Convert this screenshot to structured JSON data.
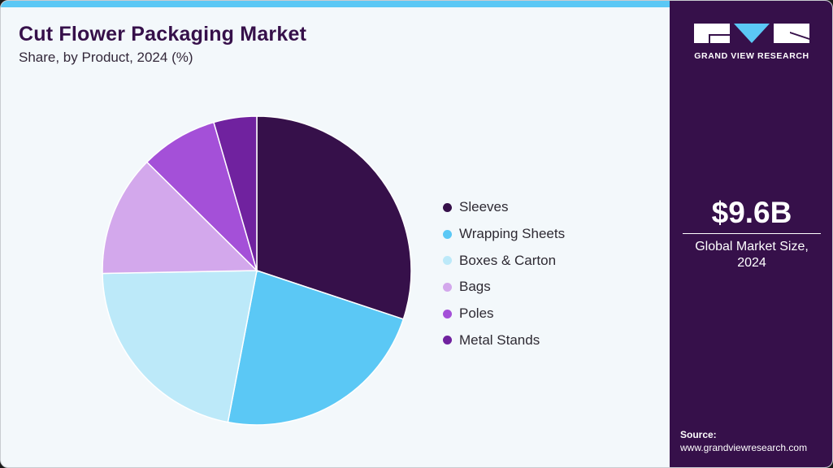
{
  "header": {
    "title": "Cut Flower Packaging Market",
    "subtitle": "Share, by Product, 2024 (%)"
  },
  "brand": {
    "name": "GRAND VIEW RESEARCH",
    "accent": "#5bc8f5",
    "panel_color": "#36104a"
  },
  "summary": {
    "value": "$9.6B",
    "label_line1": "Global Market Size,",
    "label_line2": "2024"
  },
  "source": {
    "label": "Source:",
    "url": "www.grandviewresearch.com"
  },
  "legend": [
    {
      "label": "Sleeves",
      "color": "#36104a"
    },
    {
      "label": "Wrapping Sheets",
      "color": "#5bc8f5"
    },
    {
      "label": "Boxes & Carton",
      "color": "#bce9f9"
    },
    {
      "label": "Bags",
      "color": "#d3a8ec"
    },
    {
      "label": "Poles",
      "color": "#a450d8"
    },
    {
      "label": "Metal Stands",
      "color": "#70229f"
    }
  ],
  "chart_data": {
    "type": "pie",
    "title": "Cut Flower Packaging Market",
    "subtitle": "Share, by Product, 2024 (%)",
    "categories": [
      "Sleeves",
      "Wrapping Sheets",
      "Boxes & Carton",
      "Bags",
      "Poles",
      "Metal Stands"
    ],
    "values": [
      30.1,
      22.9,
      21.7,
      12.7,
      8.1,
      4.5
    ],
    "colors": [
      "#36104a",
      "#5bc8f5",
      "#bce9f9",
      "#d3a8ec",
      "#a450d8",
      "#70229f"
    ],
    "start_angle": "12 o'clock, clockwise",
    "legend_position": "right",
    "data_labels": false
  }
}
